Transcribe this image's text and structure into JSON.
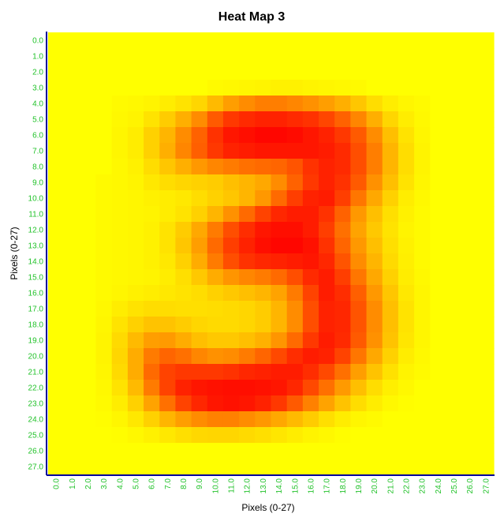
{
  "chart_data": {
    "type": "heatmap",
    "title": "Heat Map 3",
    "xlabel": "Pixels (0-27)",
    "ylabel": "Pixels (0-27)",
    "x_ticks": [
      "0.0",
      "1.0",
      "2.0",
      "3.0",
      "4.0",
      "5.0",
      "6.0",
      "7.0",
      "8.0",
      "9.0",
      "10.0",
      "11.0",
      "12.0",
      "13.0",
      "14.0",
      "15.0",
      "16.0",
      "17.0",
      "18.0",
      "19.0",
      "20.0",
      "21.0",
      "22.0",
      "23.0",
      "24.0",
      "25.0",
      "26.0",
      "27.0"
    ],
    "y_ticks": [
      "0.0",
      "1.0",
      "2.0",
      "3.0",
      "4.0",
      "5.0",
      "6.0",
      "7.0",
      "8.0",
      "9.0",
      "10.0",
      "11.0",
      "12.0",
      "13.0",
      "14.0",
      "15.0",
      "16.0",
      "17.0",
      "18.0",
      "19.0",
      "20.0",
      "21.0",
      "22.0",
      "23.0",
      "24.0",
      "25.0",
      "26.0",
      "27.0"
    ],
    "xlim": [
      0,
      27
    ],
    "ylim": [
      0,
      27
    ],
    "colormap": {
      "low": "#ffff00",
      "mid": "#ff8c00",
      "high": "#ff0000"
    },
    "axis_color": "#000099",
    "tick_color": "#22c22a",
    "grid": false,
    "legend": "none",
    "values": [
      [
        0,
        0,
        0,
        0,
        0,
        0,
        0,
        0,
        0,
        0,
        0,
        0,
        0,
        0,
        0,
        0,
        0,
        0,
        0,
        0,
        0,
        0,
        0,
        0,
        0,
        0,
        0,
        0
      ],
      [
        0,
        0,
        0,
        0,
        0,
        0,
        0,
        0,
        0,
        0,
        0,
        0,
        0,
        0,
        0,
        0,
        0,
        0,
        0,
        0,
        0,
        0,
        0,
        0,
        0,
        0,
        0,
        0
      ],
      [
        0,
        0,
        0,
        0,
        0,
        0,
        0,
        0,
        0,
        0,
        0,
        0,
        0,
        0,
        0,
        0,
        0,
        0,
        0,
        0,
        0,
        0,
        0,
        0,
        0,
        0,
        0,
        0
      ],
      [
        0,
        0,
        0,
        0,
        0,
        0,
        0,
        0,
        0,
        0,
        0.02,
        0.03,
        0.04,
        0.05,
        0.06,
        0.06,
        0.05,
        0.04,
        0.03,
        0.02,
        0,
        0,
        0,
        0,
        0,
        0,
        0,
        0
      ],
      [
        0,
        0,
        0,
        0,
        0.02,
        0.03,
        0.05,
        0.08,
        0.12,
        0.18,
        0.3,
        0.42,
        0.5,
        0.55,
        0.55,
        0.52,
        0.48,
        0.42,
        0.35,
        0.25,
        0.15,
        0.08,
        0.04,
        0.02,
        0,
        0,
        0,
        0
      ],
      [
        0,
        0,
        0,
        0,
        0.03,
        0.05,
        0.12,
        0.22,
        0.35,
        0.5,
        0.68,
        0.8,
        0.85,
        0.88,
        0.88,
        0.85,
        0.82,
        0.75,
        0.65,
        0.52,
        0.35,
        0.18,
        0.08,
        0.03,
        0,
        0,
        0,
        0
      ],
      [
        0,
        0,
        0,
        0,
        0.04,
        0.08,
        0.2,
        0.32,
        0.5,
        0.65,
        0.82,
        0.92,
        0.95,
        0.98,
        0.98,
        0.96,
        0.92,
        0.88,
        0.8,
        0.68,
        0.5,
        0.28,
        0.12,
        0.04,
        0,
        0,
        0,
        0
      ],
      [
        0,
        0,
        0,
        0,
        0.04,
        0.08,
        0.2,
        0.35,
        0.52,
        0.66,
        0.8,
        0.88,
        0.9,
        0.92,
        0.92,
        0.92,
        0.92,
        0.9,
        0.85,
        0.72,
        0.55,
        0.32,
        0.15,
        0.05,
        0,
        0,
        0,
        0
      ],
      [
        0,
        0,
        0,
        0,
        0.03,
        0.06,
        0.15,
        0.25,
        0.35,
        0.45,
        0.52,
        0.56,
        0.6,
        0.62,
        0.64,
        0.7,
        0.82,
        0.88,
        0.85,
        0.72,
        0.55,
        0.32,
        0.15,
        0.05,
        0,
        0,
        0,
        0
      ],
      [
        0,
        0,
        0,
        0.02,
        0.03,
        0.05,
        0.1,
        0.15,
        0.18,
        0.2,
        0.22,
        0.28,
        0.32,
        0.38,
        0.5,
        0.65,
        0.8,
        0.88,
        0.82,
        0.68,
        0.48,
        0.28,
        0.12,
        0.04,
        0,
        0,
        0,
        0
      ],
      [
        0,
        0,
        0,
        0.02,
        0.03,
        0.04,
        0.06,
        0.08,
        0.1,
        0.15,
        0.2,
        0.25,
        0.32,
        0.45,
        0.62,
        0.78,
        0.88,
        0.9,
        0.78,
        0.58,
        0.38,
        0.2,
        0.08,
        0.03,
        0,
        0,
        0,
        0
      ],
      [
        0,
        0,
        0,
        0.02,
        0.03,
        0.04,
        0.05,
        0.08,
        0.12,
        0.2,
        0.32,
        0.48,
        0.62,
        0.76,
        0.86,
        0.9,
        0.9,
        0.82,
        0.65,
        0.45,
        0.28,
        0.14,
        0.06,
        0.02,
        0,
        0,
        0,
        0
      ],
      [
        0,
        0,
        0,
        0.02,
        0.03,
        0.04,
        0.06,
        0.12,
        0.22,
        0.38,
        0.56,
        0.72,
        0.84,
        0.92,
        0.95,
        0.95,
        0.9,
        0.78,
        0.6,
        0.4,
        0.24,
        0.12,
        0.05,
        0.02,
        0,
        0,
        0,
        0
      ],
      [
        0,
        0,
        0,
        0.02,
        0.03,
        0.04,
        0.06,
        0.12,
        0.25,
        0.42,
        0.62,
        0.78,
        0.88,
        0.95,
        0.98,
        0.98,
        0.94,
        0.82,
        0.64,
        0.45,
        0.28,
        0.14,
        0.06,
        0.02,
        0,
        0,
        0,
        0
      ],
      [
        0,
        0,
        0,
        0.02,
        0.03,
        0.04,
        0.06,
        0.1,
        0.2,
        0.36,
        0.56,
        0.72,
        0.82,
        0.86,
        0.88,
        0.9,
        0.92,
        0.86,
        0.7,
        0.5,
        0.32,
        0.16,
        0.07,
        0.02,
        0,
        0,
        0,
        0
      ],
      [
        0,
        0,
        0,
        0.02,
        0.03,
        0.04,
        0.05,
        0.08,
        0.14,
        0.24,
        0.36,
        0.46,
        0.52,
        0.56,
        0.62,
        0.72,
        0.85,
        0.9,
        0.78,
        0.58,
        0.38,
        0.2,
        0.08,
        0.03,
        0,
        0,
        0,
        0
      ],
      [
        0,
        0,
        0,
        0.02,
        0.04,
        0.06,
        0.08,
        0.1,
        0.12,
        0.15,
        0.2,
        0.24,
        0.28,
        0.32,
        0.4,
        0.56,
        0.76,
        0.9,
        0.84,
        0.66,
        0.45,
        0.25,
        0.1,
        0.04,
        0,
        0,
        0,
        0
      ],
      [
        0,
        0,
        0,
        0.03,
        0.08,
        0.12,
        0.15,
        0.15,
        0.14,
        0.14,
        0.15,
        0.16,
        0.18,
        0.22,
        0.32,
        0.5,
        0.72,
        0.88,
        0.86,
        0.7,
        0.5,
        0.28,
        0.12,
        0.04,
        0,
        0,
        0,
        0
      ],
      [
        0,
        0,
        0,
        0.04,
        0.12,
        0.2,
        0.26,
        0.26,
        0.22,
        0.18,
        0.16,
        0.16,
        0.18,
        0.22,
        0.32,
        0.5,
        0.72,
        0.88,
        0.86,
        0.7,
        0.5,
        0.28,
        0.12,
        0.04,
        0,
        0,
        0,
        0
      ],
      [
        0,
        0,
        0,
        0.05,
        0.16,
        0.3,
        0.42,
        0.44,
        0.36,
        0.28,
        0.24,
        0.24,
        0.28,
        0.34,
        0.46,
        0.62,
        0.8,
        0.9,
        0.85,
        0.68,
        0.48,
        0.26,
        0.11,
        0.04,
        0,
        0,
        0,
        0
      ],
      [
        0,
        0,
        0,
        0.05,
        0.18,
        0.36,
        0.56,
        0.64,
        0.6,
        0.52,
        0.48,
        0.5,
        0.56,
        0.64,
        0.74,
        0.84,
        0.9,
        0.88,
        0.76,
        0.58,
        0.38,
        0.2,
        0.08,
        0.03,
        0,
        0,
        0,
        0
      ],
      [
        0,
        0,
        0,
        0.04,
        0.16,
        0.36,
        0.62,
        0.76,
        0.8,
        0.8,
        0.8,
        0.82,
        0.86,
        0.88,
        0.9,
        0.9,
        0.84,
        0.74,
        0.6,
        0.42,
        0.26,
        0.13,
        0.05,
        0.02,
        0,
        0,
        0,
        0
      ],
      [
        0,
        0,
        0,
        0.03,
        0.12,
        0.3,
        0.56,
        0.76,
        0.88,
        0.92,
        0.94,
        0.95,
        0.95,
        0.94,
        0.92,
        0.86,
        0.74,
        0.6,
        0.44,
        0.28,
        0.15,
        0.07,
        0.03,
        0,
        0,
        0,
        0,
        0
      ],
      [
        0,
        0,
        0,
        0.02,
        0.08,
        0.2,
        0.4,
        0.6,
        0.76,
        0.86,
        0.92,
        0.94,
        0.92,
        0.88,
        0.8,
        0.68,
        0.54,
        0.4,
        0.26,
        0.15,
        0.08,
        0.03,
        0.01,
        0,
        0,
        0,
        0,
        0
      ],
      [
        0,
        0,
        0,
        0.01,
        0.04,
        0.1,
        0.2,
        0.32,
        0.42,
        0.5,
        0.54,
        0.54,
        0.5,
        0.45,
        0.38,
        0.3,
        0.22,
        0.14,
        0.08,
        0.04,
        0.02,
        0,
        0,
        0,
        0,
        0,
        0,
        0
      ],
      [
        0,
        0,
        0,
        0,
        0.01,
        0.03,
        0.06,
        0.1,
        0.14,
        0.17,
        0.18,
        0.18,
        0.16,
        0.14,
        0.11,
        0.08,
        0.05,
        0.03,
        0.01,
        0,
        0,
        0,
        0,
        0,
        0,
        0,
        0,
        0
      ],
      [
        0,
        0,
        0,
        0,
        0,
        0,
        0,
        0,
        0,
        0,
        0,
        0,
        0,
        0,
        0,
        0,
        0,
        0,
        0,
        0,
        0,
        0,
        0,
        0,
        0,
        0,
        0,
        0
      ],
      [
        0,
        0,
        0,
        0,
        0,
        0,
        0,
        0,
        0,
        0,
        0,
        0,
        0,
        0,
        0,
        0,
        0,
        0,
        0,
        0,
        0,
        0,
        0,
        0,
        0,
        0,
        0,
        0
      ]
    ]
  }
}
